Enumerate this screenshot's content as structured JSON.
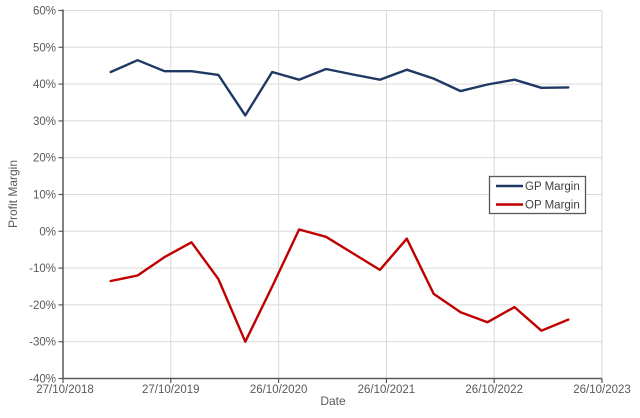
{
  "chart_data": {
    "type": "line",
    "title": "",
    "xlabel": "Date",
    "ylabel": "Profit Margin",
    "x_tick_labels": [
      "27/10/2018",
      "27/10/2019",
      "26/10/2020",
      "26/10/2021",
      "26/10/2022",
      "26/10/2023"
    ],
    "y_tick_labels": [
      "60%",
      "50%",
      "40%",
      "30%",
      "20%",
      "10%",
      "0%",
      "-10%",
      "-20%",
      "-30%",
      "-40%"
    ],
    "y_tick_values": [
      60,
      50,
      40,
      30,
      20,
      10,
      0,
      -10,
      -20,
      -30,
      -40
    ],
    "ylim": [
      -40,
      60
    ],
    "grid": true,
    "legend": {
      "position": "middle-right",
      "entries": [
        "GP Margin",
        "OP Margin"
      ]
    },
    "x_first_frac": 0.0885,
    "x_spacing_frac": 0.04994,
    "series": [
      {
        "name": "GP Margin",
        "color": "#1f3864",
        "values": [
          43.3,
          46.5,
          43.5,
          43.5,
          42.5,
          31.5,
          43.3,
          41.2,
          44.1,
          42.6,
          41.2,
          43.9,
          41.5,
          38.1,
          39.9,
          41.2,
          39.0,
          39.1
        ]
      },
      {
        "name": "OP Margin",
        "color": "#c00000",
        "values": [
          -13.5,
          -12,
          -7,
          -3,
          -13,
          -30,
          -15,
          0.5,
          -1.5,
          -6,
          -10.5,
          -2,
          -17,
          -22,
          -24.7,
          -20.6,
          -27,
          -24
        ]
      }
    ],
    "colors": {
      "gridline": "#d9d9d9",
      "axis": "#595959",
      "tick_text": "#595959",
      "legend_border": "#595959",
      "legend_text": "#404040",
      "background": "#ffffff"
    }
  }
}
